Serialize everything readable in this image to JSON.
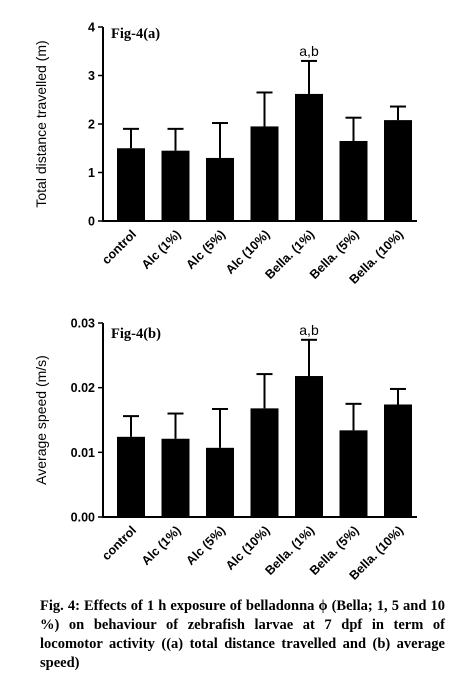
{
  "chart_data": [
    {
      "type": "bar",
      "panel_label": "Fig-4(a)",
      "ylabel": "Total distance travelled (m)",
      "ylim": [
        0,
        4
      ],
      "yticks": [
        "0",
        "1",
        "2",
        "3",
        "4"
      ],
      "categories": [
        "control",
        "Alc (1%)",
        "Alc (5%)",
        "Alc (10%)",
        "Bella. (1%)",
        "Bella. (5%)",
        "Bella. (10%)"
      ],
      "values": [
        1.5,
        1.45,
        1.3,
        1.95,
        2.62,
        1.65,
        2.08
      ],
      "errors": [
        0.4,
        0.45,
        0.72,
        0.7,
        0.68,
        0.48,
        0.28
      ],
      "annotations": [
        {
          "category": "Bella. (1%)",
          "text": "a,b"
        }
      ]
    },
    {
      "type": "bar",
      "panel_label": "Fig-4(b)",
      "ylabel": "Average speed (m/s)",
      "ylim": [
        0,
        0.03
      ],
      "yticks": [
        "0.00",
        "0.01",
        "0.02",
        "0.03"
      ],
      "categories": [
        "control",
        "Alc (1%)",
        "Alc (5%)",
        "Alc (10%)",
        "Bella. (1%)",
        "Bella. (5%)",
        "Bella. (10%)"
      ],
      "values": [
        0.0124,
        0.0121,
        0.0107,
        0.0168,
        0.0218,
        0.0134,
        0.0174
      ],
      "errors": [
        0.0032,
        0.0039,
        0.006,
        0.0053,
        0.0056,
        0.0041,
        0.0024
      ],
      "annotations": [
        {
          "category": "Bella. (1%)",
          "text": "a,b"
        }
      ]
    }
  ],
  "caption": "Fig. 4: Effects of 1 h exposure of belladonna ϕ (Bella; 1, 5 and 10 %) on behaviour of zebrafish larvae at 7 dpf in term of locomotor activity ((a) total distance travelled and (b) average speed)",
  "colors": {
    "bar": "#000000",
    "axis": "#000000",
    "background": "#ffffff"
  }
}
